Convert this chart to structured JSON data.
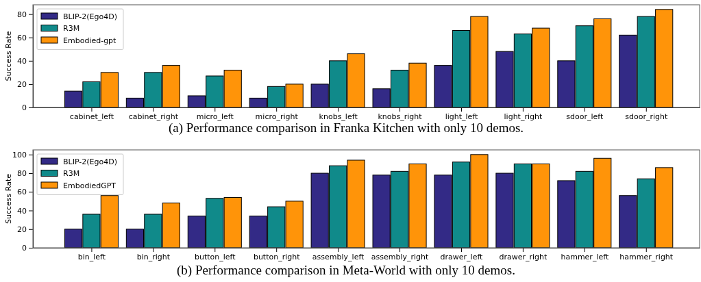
{
  "chart_data": [
    {
      "type": "bar",
      "title": "(a) Performance comparison in Franka Kitchen with only 10 demos.",
      "ylabel": "Success Rate",
      "categories": [
        "cabinet_left",
        "cabinet_right",
        "micro_left",
        "micro_right",
        "knobs_left",
        "knobs_right",
        "light_left",
        "light_right",
        "sdoor_left",
        "sdoor_right"
      ],
      "series": [
        {
          "name": "BLIP-2(Ego4D)",
          "color": "#332a86",
          "values": [
            14,
            8,
            10,
            8,
            20,
            16,
            36,
            48,
            40,
            62
          ]
        },
        {
          "name": "R3M",
          "color": "#108a8a",
          "values": [
            22,
            30,
            27,
            18,
            40,
            32,
            66,
            63,
            70,
            78
          ]
        },
        {
          "name": "Embodied-gpt",
          "color": "#ff9409",
          "values": [
            30,
            36,
            32,
            20,
            46,
            38,
            78,
            68,
            76,
            84
          ]
        }
      ],
      "ylim": [
        0,
        88
      ],
      "yticks": [
        0,
        20,
        40,
        60,
        80
      ],
      "legend": "top left"
    },
    {
      "type": "bar",
      "title": "(b) Performance comparison in Meta-World with only 10 demos.",
      "ylabel": "Success Rate",
      "categories": [
        "bin_left",
        "bin_right",
        "button_left",
        "button_right",
        "assembly_left",
        "assembly_right",
        "drawer_left",
        "drawer_right",
        "hammer_left",
        "hammer_right"
      ],
      "series": [
        {
          "name": "BLIP-2(Ego4D)",
          "color": "#332a86",
          "values": [
            20,
            20,
            34,
            34,
            80,
            78,
            78,
            80,
            72,
            56
          ]
        },
        {
          "name": "R3M",
          "color": "#108a8a",
          "values": [
            36,
            36,
            53,
            44,
            88,
            82,
            92,
            90,
            82,
            74
          ]
        },
        {
          "name": "EmbodiedGPT",
          "color": "#ff9409",
          "values": [
            56,
            48,
            54,
            50,
            94,
            90,
            100,
            90,
            96,
            86
          ]
        }
      ],
      "ylim": [
        0,
        105
      ],
      "yticks": [
        0,
        20,
        40,
        60,
        80,
        100
      ],
      "legend": "top left"
    }
  ]
}
